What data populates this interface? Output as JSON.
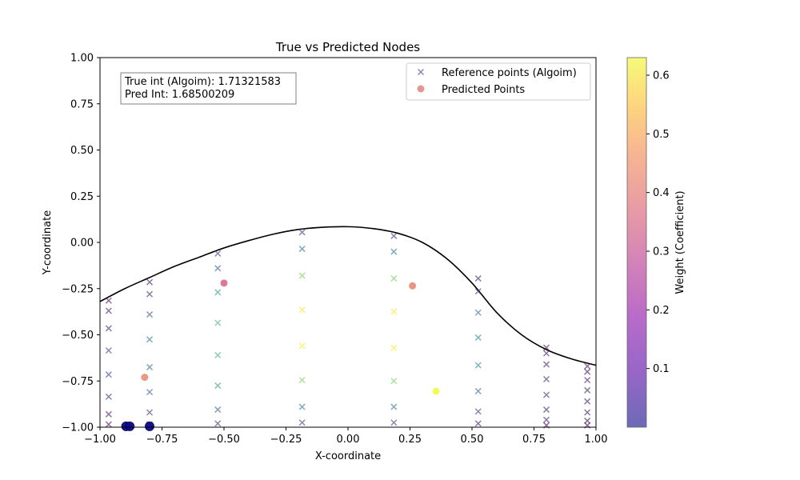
{
  "chart_data": {
    "type": "scatter",
    "title": "True vs Predicted Nodes",
    "xlabel": "X-coordinate",
    "ylabel": "Y-coordinate",
    "xlim": [
      -1.0,
      1.0
    ],
    "ylim": [
      -1.0,
      1.0
    ],
    "x_ticks": [
      "−1.00",
      "−0.75",
      "−0.50",
      "−0.25",
      "0.00",
      "0.25",
      "0.50",
      "0.75",
      "1.00"
    ],
    "y_ticks": [
      "1.00",
      "0.75",
      "0.50",
      "0.25",
      "0.00",
      "−0.25",
      "−0.50",
      "−0.75",
      "−1.00"
    ],
    "grid": false,
    "legend": {
      "position": "upper right",
      "entries": [
        "Reference points (Algoim)",
        "Predicted Points"
      ]
    },
    "annotation": {
      "line1": "True int (Algoim): 1.71321583",
      "line2": "Pred Int: 1.68500209"
    },
    "colorbar": {
      "label": "Weight (Coefficient)",
      "range": [
        0.0,
        0.63
      ],
      "colormap": "plasma",
      "ticks": [
        "0.1",
        "0.2",
        "0.3",
        "0.4",
        "0.5",
        "0.6"
      ]
    },
    "boundary_curve": {
      "color": "#000000",
      "points": [
        [
          -1.0,
          -0.32
        ],
        [
          -0.9,
          -0.25
        ],
        [
          -0.8,
          -0.19
        ],
        [
          -0.7,
          -0.13
        ],
        [
          -0.6,
          -0.08
        ],
        [
          -0.5,
          -0.03
        ],
        [
          -0.4,
          0.01
        ],
        [
          -0.3,
          0.045
        ],
        [
          -0.2,
          0.07
        ],
        [
          -0.1,
          0.082
        ],
        [
          0.0,
          0.085
        ],
        [
          0.1,
          0.075
        ],
        [
          0.2,
          0.05
        ],
        [
          0.3,
          0.0
        ],
        [
          0.4,
          -0.09
        ],
        [
          0.5,
          -0.22
        ],
        [
          0.6,
          -0.38
        ],
        [
          0.7,
          -0.5
        ],
        [
          0.8,
          -0.58
        ],
        [
          0.9,
          -0.63
        ],
        [
          1.0,
          -0.665
        ]
      ]
    },
    "series": [
      {
        "name": "Reference points (Algoim)",
        "marker": "x",
        "columns": [
          {
            "x": -0.965,
            "y": [
              -0.315,
              -0.37,
              -0.465,
              -0.585,
              -0.715,
              -0.835,
              -0.93,
              -0.985
            ],
            "w": [
              0.02,
              0.03,
              0.06,
              0.09,
              0.1,
              0.06,
              0.04,
              0.02
            ]
          },
          {
            "x": -0.8,
            "y": [
              -0.215,
              -0.28,
              -0.39,
              -0.525,
              -0.675,
              -0.81,
              -0.92,
              -0.985
            ],
            "w": [
              0.04,
              0.06,
              0.13,
              0.17,
              0.17,
              0.13,
              0.07,
              0.03
            ]
          },
          {
            "x": -0.525,
            "y": [
              -0.06,
              -0.14,
              -0.27,
              -0.435,
              -0.61,
              -0.775,
              -0.905,
              -0.98
            ],
            "w": [
              0.07,
              0.13,
              0.24,
              0.3,
              0.3,
              0.24,
              0.13,
              0.06
            ]
          },
          {
            "x": -0.185,
            "y": [
              0.055,
              -0.035,
              -0.18,
              -0.365,
              -0.56,
              -0.745,
              -0.89,
              -0.975
            ],
            "w": [
              0.08,
              0.18,
              0.37,
              0.47,
              0.47,
              0.37,
              0.18,
              0.08
            ]
          },
          {
            "x": 0.185,
            "y": [
              0.035,
              -0.05,
              -0.195,
              -0.375,
              -0.57,
              -0.75,
              -0.89,
              -0.975
            ],
            "w": [
              0.08,
              0.18,
              0.37,
              0.47,
              0.47,
              0.37,
              0.18,
              0.08
            ]
          },
          {
            "x": 0.525,
            "y": [
              -0.195,
              -0.265,
              -0.38,
              -0.515,
              -0.665,
              -0.805,
              -0.915,
              -0.98
            ],
            "w": [
              0.04,
              0.08,
              0.16,
              0.22,
              0.22,
              0.16,
              0.08,
              0.03
            ]
          },
          {
            "x": 0.8,
            "y": [
              -0.57,
              -0.6,
              -0.66,
              -0.74,
              -0.825,
              -0.905,
              -0.96,
              -0.99
            ],
            "w": [
              0.02,
              0.03,
              0.05,
              0.07,
              0.07,
              0.05,
              0.03,
              0.01
            ]
          },
          {
            "x": 0.965,
            "y": [
              -0.67,
              -0.7,
              -0.745,
              -0.8,
              -0.86,
              -0.92,
              -0.965,
              -0.99
            ],
            "w": [
              0.01,
              0.02,
              0.03,
              0.04,
              0.04,
              0.03,
              0.02,
              0.01
            ]
          }
        ]
      },
      {
        "name": "Predicted Points",
        "marker": "o",
        "points": [
          {
            "x": -0.5,
            "y": -0.22,
            "w": 0.33
          },
          {
            "x": 0.26,
            "y": -0.235,
            "w": 0.4
          },
          {
            "x": -0.82,
            "y": -0.73,
            "w": 0.41
          },
          {
            "x": 0.355,
            "y": -0.805,
            "w": 0.63
          },
          {
            "x": -0.895,
            "y": -0.995,
            "w": 0.0
          },
          {
            "x": -0.88,
            "y": -0.995,
            "w": 0.0
          },
          {
            "x": -0.8,
            "y": -0.995,
            "w": 0.0
          }
        ]
      }
    ]
  }
}
